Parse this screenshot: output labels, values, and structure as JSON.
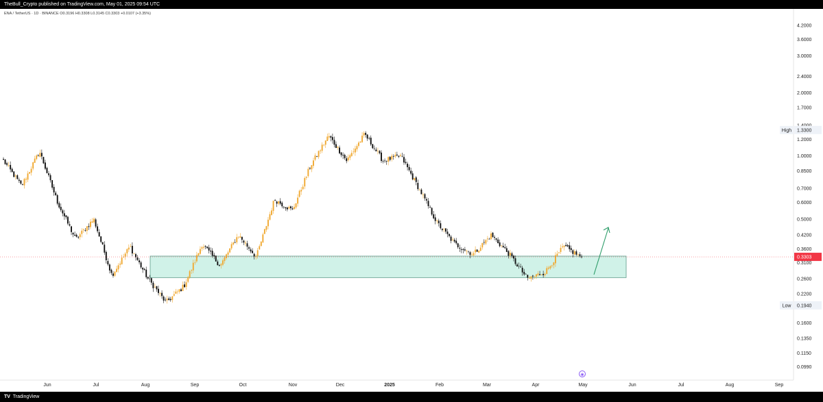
{
  "publisher_line": "TheBull_Crypto published on TradingView.com, May 01, 2025 09:54 UTC",
  "symbol_line": "ENA / TetherUS · 1D · BINANCE  O0.3196  H0.3308  L0.3145  C0.3303  +0.0107 (+3.35%)",
  "footer": {
    "logo": "TV",
    "brand": "TradingView"
  },
  "price_axis": {
    "ticks": [
      "5.0000",
      "4.2000",
      "3.6000",
      "3.0000",
      "2.4000",
      "2.0000",
      "1.7000",
      "1.4000",
      "1.2000",
      "1.0000",
      "0.8500",
      "0.7000",
      "0.6000",
      "0.5000",
      "0.4200",
      "0.3600",
      "0.3100",
      "0.2600",
      "0.2200",
      "0.1940",
      "0.1600",
      "0.1350",
      "0.1150",
      "0.0990"
    ],
    "high_label": "High",
    "high_value": "1.3300",
    "low_label": "Low",
    "low_value": "0.1940",
    "last_value": "0.3303"
  },
  "time_axis": [
    "Jun",
    "Jul",
    "Aug",
    "Sep",
    "Oct",
    "Nov",
    "Dec",
    "2025",
    "Feb",
    "Mar",
    "Apr",
    "May",
    "Jun",
    "Jul",
    "Aug",
    "Sep"
  ],
  "colors": {
    "up": "#f0a830",
    "down": "#111111",
    "zone_fill": "#c8f0e4",
    "zone_stroke": "#5c9c8a",
    "arrow": "#2e9d6a",
    "last_price": "#f23645"
  },
  "chart_data": {
    "type": "candlestick",
    "scale": "log",
    "key_prices": [
      0.95,
      0.72,
      1.05,
      0.6,
      0.4,
      0.5,
      0.27,
      0.37,
      0.26,
      0.2,
      0.24,
      0.38,
      0.3,
      0.42,
      0.33,
      0.62,
      0.55,
      0.9,
      1.25,
      0.95,
      1.27,
      0.95,
      1.0,
      0.7,
      0.48,
      0.38,
      0.34,
      0.42,
      0.34,
      0.26,
      0.28,
      0.37,
      0.3303
    ],
    "support_zone": [
      0.263,
      0.333
    ],
    "projection": "up arrow from current price toward ~0.50 by mid-May 2025"
  }
}
